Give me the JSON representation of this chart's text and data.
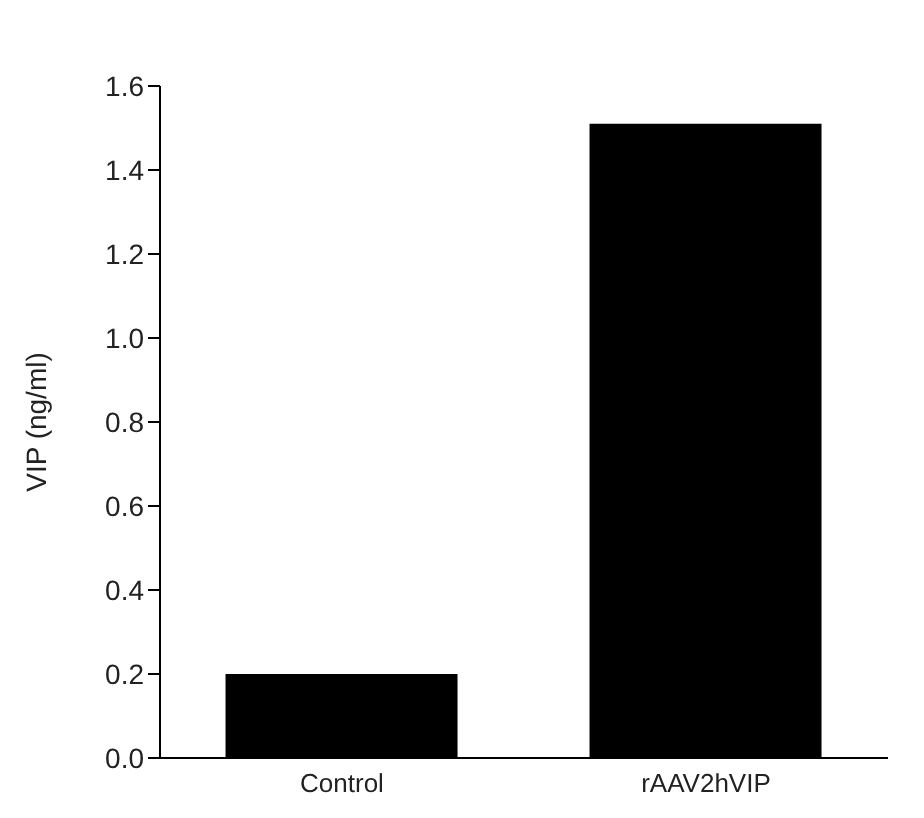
{
  "chart_data": {
    "type": "bar",
    "ylabel": "VIP (ng/ml)",
    "categories": [
      "Control",
      "rAAV2hVIP"
    ],
    "values": [
      0.2,
      1.51
    ],
    "color": "#000000",
    "ylim": [
      0,
      1.6
    ],
    "yticks": [
      {
        "value": 0,
        "label": "0.0"
      },
      0.2,
      0.4,
      0.6,
      0.8,
      {
        "value": 1,
        "label": "1.0"
      },
      1.2,
      1.4,
      1.6
    ],
    "grid": false
  }
}
